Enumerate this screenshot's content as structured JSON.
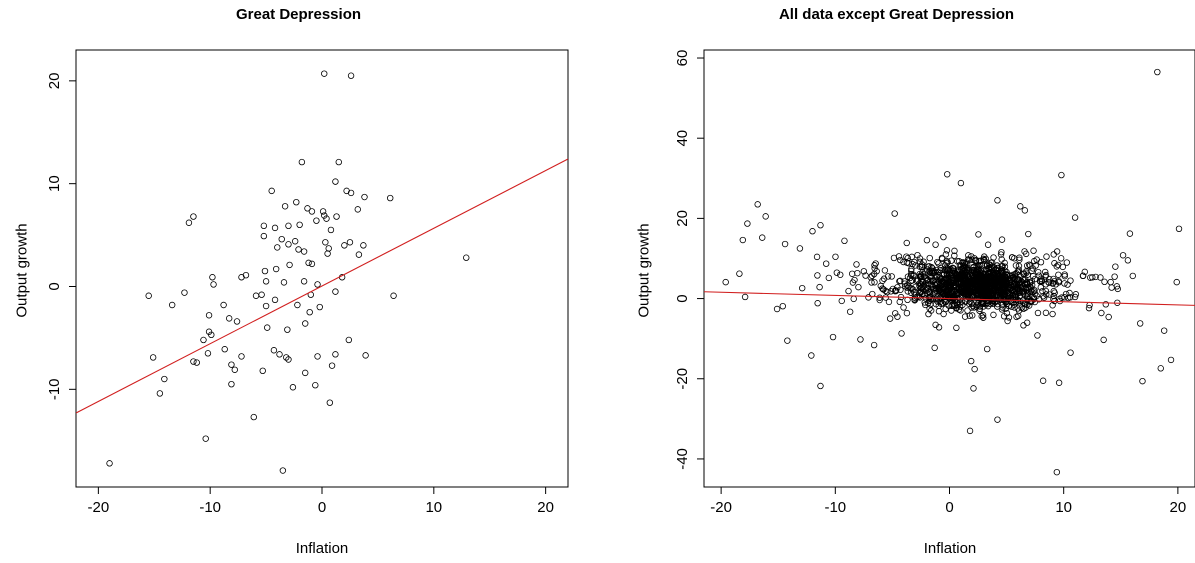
{
  "chart_data": [
    {
      "type": "scatter",
      "title": "Great Depression",
      "xlabel": "Inflation",
      "ylabel": "Output growth",
      "xlim": [
        -22,
        22
      ],
      "ylim": [
        -19.5,
        23
      ],
      "xticks": [
        -20,
        -10,
        0,
        10,
        20
      ],
      "yticks": [
        -10,
        0,
        10,
        20
      ],
      "tick_labels_x": [
        "-20",
        "-10",
        "0",
        "10",
        "20"
      ],
      "tick_labels_y": [
        "-10",
        "0",
        "10",
        "20"
      ],
      "marker": "open-circle",
      "point_color": "#000000",
      "fit_line": {
        "color": "#d11f1f",
        "x": [
          -22,
          22
        ],
        "y": [
          -12.3,
          12.4
        ]
      },
      "points": [
        [
          0.2,
          20.7
        ],
        [
          2.6,
          20.5
        ],
        [
          -1.8,
          12.1
        ],
        [
          1.5,
          12.1
        ],
        [
          -11.5,
          6.8
        ],
        [
          -11.9,
          6.2
        ],
        [
          -4.5,
          9.3
        ],
        [
          1.2,
          10.2
        ],
        [
          2.2,
          9.3
        ],
        [
          2.6,
          9.1
        ],
        [
          3.8,
          8.7
        ],
        [
          6.1,
          8.6
        ],
        [
          -2.3,
          8.2
        ],
        [
          -3.3,
          7.8
        ],
        [
          -1.3,
          7.6
        ],
        [
          -0.9,
          7.3
        ],
        [
          0.1,
          7.3
        ],
        [
          3.2,
          7.5
        ],
        [
          0.2,
          6.9
        ],
        [
          0.4,
          6.6
        ],
        [
          1.3,
          6.8
        ],
        [
          -5.2,
          5.9
        ],
        [
          -4.2,
          5.7
        ],
        [
          -3.0,
          5.9
        ],
        [
          -2.0,
          6.0
        ],
        [
          -0.5,
          6.4
        ],
        [
          0.8,
          5.5
        ],
        [
          -5.2,
          4.9
        ],
        [
          -3.6,
          4.6
        ],
        [
          -2.4,
          4.4
        ],
        [
          -3.0,
          4.1
        ],
        [
          -2.1,
          3.6
        ],
        [
          -1.6,
          3.4
        ],
        [
          -4.0,
          3.8
        ],
        [
          0.3,
          4.3
        ],
        [
          0.6,
          3.7
        ],
        [
          2.0,
          4.0
        ],
        [
          2.5,
          4.3
        ],
        [
          3.7,
          4.0
        ],
        [
          3.3,
          3.1
        ],
        [
          0.5,
          3.2
        ],
        [
          -1.2,
          2.3
        ],
        [
          -0.9,
          2.2
        ],
        [
          -2.9,
          2.1
        ],
        [
          -5.1,
          1.5
        ],
        [
          -4.1,
          1.7
        ],
        [
          -6.8,
          1.1
        ],
        [
          -9.8,
          0.9
        ],
        [
          -7.2,
          0.9
        ],
        [
          -9.7,
          0.2
        ],
        [
          -5.0,
          0.5
        ],
        [
          -3.4,
          0.4
        ],
        [
          -1.6,
          0.5
        ],
        [
          -0.4,
          0.2
        ],
        [
          1.8,
          0.9
        ],
        [
          -12.3,
          -0.6
        ],
        [
          -15.5,
          -0.9
        ],
        [
          -5.9,
          -0.9
        ],
        [
          -5.4,
          -0.8
        ],
        [
          -1.0,
          -0.8
        ],
        [
          1.2,
          -0.5
        ],
        [
          6.4,
          -0.9
        ],
        [
          12.9,
          2.8
        ],
        [
          -13.4,
          -1.8
        ],
        [
          -8.8,
          -1.8
        ],
        [
          -10.1,
          -2.8
        ],
        [
          -8.3,
          -3.1
        ],
        [
          -7.6,
          -3.4
        ],
        [
          -5.0,
          -1.9
        ],
        [
          -4.2,
          -1.3
        ],
        [
          -2.2,
          -1.8
        ],
        [
          -1.1,
          -2.5
        ],
        [
          -0.2,
          -2.0
        ],
        [
          -4.9,
          -4.0
        ],
        [
          -3.1,
          -4.2
        ],
        [
          -1.5,
          -3.6
        ],
        [
          -10.1,
          -4.4
        ],
        [
          -9.9,
          -4.7
        ],
        [
          -10.6,
          -5.2
        ],
        [
          -11.2,
          -7.4
        ],
        [
          -11.5,
          -7.3
        ],
        [
          -8.7,
          -6.1
        ],
        [
          -8.1,
          -7.6
        ],
        [
          -7.8,
          -8.1
        ],
        [
          -4.3,
          -6.2
        ],
        [
          -3.8,
          -6.6
        ],
        [
          -3.2,
          -6.9
        ],
        [
          -3.0,
          -7.1
        ],
        [
          -0.4,
          -6.8
        ],
        [
          1.2,
          -6.6
        ],
        [
          -10.2,
          -6.5
        ],
        [
          -15.1,
          -6.9
        ],
        [
          -14.1,
          -9.0
        ],
        [
          -14.5,
          -10.4
        ],
        [
          -8.1,
          -9.5
        ],
        [
          -5.3,
          -8.2
        ],
        [
          -2.6,
          -9.8
        ],
        [
          -1.5,
          -8.4
        ],
        [
          0.9,
          -7.7
        ],
        [
          2.4,
          -5.2
        ],
        [
          3.9,
          -6.7
        ],
        [
          0.7,
          -11.3
        ],
        [
          -6.1,
          -12.7
        ],
        [
          -10.4,
          -14.8
        ],
        [
          -3.5,
          -17.9
        ],
        [
          -19.0,
          -17.2
        ],
        [
          -7.2,
          -6.8
        ],
        [
          -0.6,
          -9.6
        ]
      ]
    },
    {
      "type": "scatter",
      "title": "All data except Great Depression",
      "xlabel": "Inflation",
      "ylabel": "Output growth",
      "xlim": [
        -21.5,
        21.5
      ],
      "ylim": [
        -47,
        62
      ],
      "xticks": [
        -20,
        -10,
        0,
        10,
        20
      ],
      "yticks": [
        -40,
        -20,
        0,
        20,
        40,
        60
      ],
      "tick_labels_x": [
        "-20",
        "-10",
        "0",
        "10",
        "20"
      ],
      "tick_labels_y": [
        "-40",
        "-20",
        "0",
        "20",
        "40",
        "60"
      ],
      "marker": "open-circle",
      "point_color": "#000000",
      "fit_line": {
        "color": "#d11f1f",
        "x": [
          -21.5,
          21.5
        ],
        "y": [
          1.7,
          -1.7
        ]
      },
      "bulk_cloud": {
        "count": 1400,
        "x_center": 2.5,
        "y_center": 3.5
      },
      "points": [
        [
          18.2,
          56.5
        ],
        [
          -0.2,
          31.0
        ],
        [
          9.8,
          30.8
        ],
        [
          1.0,
          28.8
        ],
        [
          4.2,
          24.5
        ],
        [
          -16.8,
          23.5
        ],
        [
          6.2,
          23.0
        ],
        [
          6.6,
          22.0
        ],
        [
          -4.8,
          21.2
        ],
        [
          11.0,
          20.2
        ],
        [
          -17.7,
          18.7
        ],
        [
          -11.3,
          18.3
        ],
        [
          -16.1,
          20.5
        ],
        [
          20.1,
          17.4
        ],
        [
          -16.4,
          15.2
        ],
        [
          -12.0,
          16.8
        ],
        [
          -14.4,
          13.6
        ],
        [
          -13.1,
          12.5
        ],
        [
          -18.1,
          14.6
        ],
        [
          -19.6,
          4.1
        ],
        [
          -18.4,
          6.2
        ],
        [
          -17.9,
          0.4
        ],
        [
          -15.1,
          -2.6
        ],
        [
          -14.2,
          -10.5
        ],
        [
          -11.3,
          -21.8
        ],
        [
          -12.1,
          -14.2
        ],
        [
          -10.2,
          -9.6
        ],
        [
          -7.8,
          -10.2
        ],
        [
          -4.2,
          -8.7
        ],
        [
          -6.6,
          -11.6
        ],
        [
          -1.3,
          -12.3
        ],
        [
          1.9,
          -15.6
        ],
        [
          2.1,
          -22.4
        ],
        [
          2.2,
          -17.6
        ],
        [
          1.8,
          -33.0
        ],
        [
          4.2,
          -30.2
        ],
        [
          8.2,
          -20.5
        ],
        [
          9.6,
          -21.0
        ],
        [
          10.6,
          -13.5
        ],
        [
          13.5,
          -10.3
        ],
        [
          16.9,
          -20.6
        ],
        [
          18.5,
          -17.4
        ],
        [
          19.4,
          -15.3
        ],
        [
          18.8,
          -8.0
        ],
        [
          9.4,
          -43.3
        ],
        [
          -8.7,
          -3.3
        ],
        [
          -12.9,
          2.6
        ],
        [
          -10.8,
          8.7
        ],
        [
          -9.2,
          14.4
        ],
        [
          -5.2,
          -5.0
        ],
        [
          -3.3,
          10.4
        ],
        [
          4.6,
          14.7
        ],
        [
          7.7,
          -9.2
        ],
        [
          12.8,
          5.4
        ],
        [
          15.2,
          10.8
        ],
        [
          19.9,
          4.1
        ],
        [
          16.7,
          -6.2
        ],
        [
          6.9,
          16.1
        ],
        [
          -7.5,
          6.8
        ],
        [
          13.3,
          -3.6
        ],
        [
          -11.6,
          10.4
        ],
        [
          3.3,
          -12.6
        ],
        [
          -14.6,
          -1.9
        ],
        [
          15.8,
          16.2
        ]
      ]
    }
  ]
}
